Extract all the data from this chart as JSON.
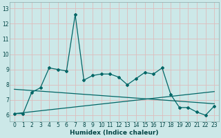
{
  "xlabel": "Humidex (Indice chaleur)",
  "bg_color": "#cce8e8",
  "grid_color": "#ddbcbc",
  "line_color": "#006666",
  "xlim": [
    -0.5,
    23.5
  ],
  "ylim": [
    5.6,
    13.4
  ],
  "xtick_labels": [
    "0",
    "1",
    "2",
    "3",
    "4",
    "5",
    "6",
    "7",
    "8",
    "9",
    "10",
    "11",
    "12",
    "13",
    "14",
    "15",
    "16",
    "17",
    "18",
    "19",
    "20",
    "21",
    "22",
    "23"
  ],
  "ytick_labels": [
    "6",
    "7",
    "8",
    "9",
    "10",
    "11",
    "12",
    "13"
  ],
  "ytick_vals": [
    6,
    7,
    8,
    9,
    10,
    11,
    12,
    13
  ],
  "series1_x": [
    0,
    1,
    2,
    3,
    4,
    5,
    6,
    7,
    8,
    9,
    10,
    11,
    12,
    13,
    14,
    15,
    16,
    17,
    18,
    19,
    20,
    21,
    22,
    23
  ],
  "series1_y": [
    6.1,
    6.1,
    7.5,
    7.8,
    9.1,
    9.0,
    8.9,
    12.6,
    8.3,
    8.6,
    8.7,
    8.7,
    8.5,
    8.0,
    8.4,
    8.8,
    8.7,
    9.1,
    7.35,
    6.5,
    6.5,
    6.2,
    6.0,
    6.6
  ],
  "series2_x": [
    0,
    23
  ],
  "series2_y": [
    6.1,
    7.55
  ],
  "series3_x": [
    0,
    23
  ],
  "series3_y": [
    7.7,
    6.75
  ]
}
